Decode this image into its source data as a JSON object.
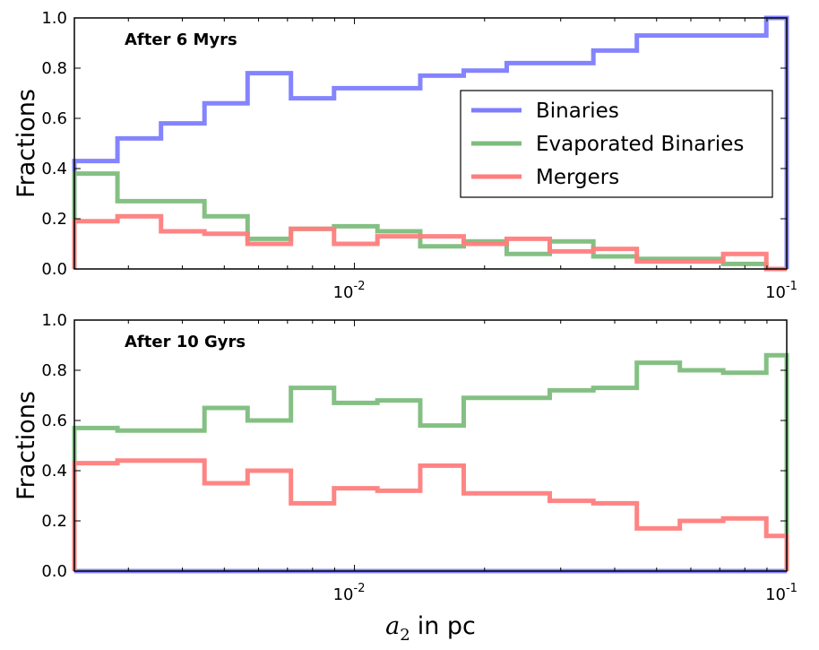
{
  "chart_data": [
    {
      "type": "step",
      "panel": "top",
      "annotation": "After 6 Myrs",
      "ylabel": "Fractions",
      "xlabel": "",
      "xscale": "log",
      "xlim": [
        0.00225,
        0.1
      ],
      "ylim": [
        0.0,
        1.0
      ],
      "yticks": [
        "0.0",
        "0.2",
        "0.4",
        "0.6",
        "0.8",
        "1.0"
      ],
      "xticks": [
        {
          "value": 0.01,
          "base": "10",
          "exp": "-2"
        },
        {
          "value": 0.1,
          "base": "10",
          "exp": "-1"
        }
      ],
      "bin_edges": [
        0.00225,
        0.00283,
        0.00357,
        0.0045,
        0.00566,
        0.00713,
        0.00897,
        0.0113,
        0.0142,
        0.0179,
        0.0225,
        0.0283,
        0.0357,
        0.045,
        0.0566,
        0.0713,
        0.0897,
        0.1
      ],
      "legend": {
        "position": "center-right",
        "entries": [
          "Binaries",
          "Evaporated Binaries",
          "Mergers"
        ]
      },
      "series": [
        {
          "name": "Binaries",
          "color": "#7d7dff",
          "values": [
            0.43,
            0.52,
            0.58,
            0.66,
            0.78,
            0.68,
            0.72,
            0.72,
            0.77,
            0.79,
            0.82,
            0.82,
            0.87,
            0.93,
            0.93,
            0.93,
            1.0
          ]
        },
        {
          "name": "Evaporated Binaries",
          "color": "#7dbd7d",
          "values": [
            0.38,
            0.27,
            0.27,
            0.21,
            0.12,
            0.16,
            0.17,
            0.15,
            0.09,
            0.11,
            0.06,
            0.11,
            0.05,
            0.04,
            0.04,
            0.02,
            0.0
          ]
        },
        {
          "name": "Mergers",
          "color": "#ff7d7d",
          "values": [
            0.19,
            0.21,
            0.15,
            0.14,
            0.1,
            0.16,
            0.1,
            0.13,
            0.13,
            0.1,
            0.12,
            0.07,
            0.08,
            0.03,
            0.03,
            0.06,
            0.0
          ]
        }
      ]
    },
    {
      "type": "step",
      "panel": "bottom",
      "annotation": "After 10 Gyrs",
      "ylabel": "Fractions",
      "xlabel": "in pc",
      "xlabel_math": "a",
      "xlabel_sub": "2",
      "xscale": "log",
      "xlim": [
        0.00225,
        0.1
      ],
      "ylim": [
        0.0,
        1.0
      ],
      "yticks": [
        "0.0",
        "0.2",
        "0.4",
        "0.6",
        "0.8",
        "1.0"
      ],
      "xticks": [
        {
          "value": 0.01,
          "base": "10",
          "exp": "-2"
        },
        {
          "value": 0.1,
          "base": "10",
          "exp": "-1"
        }
      ],
      "bin_edges": [
        0.00225,
        0.00283,
        0.00357,
        0.0045,
        0.00566,
        0.00713,
        0.00897,
        0.0113,
        0.0142,
        0.0179,
        0.0225,
        0.0283,
        0.0357,
        0.045,
        0.0566,
        0.0713,
        0.0897,
        0.1
      ],
      "series": [
        {
          "name": "Binaries",
          "color": "#7d7dff",
          "values": [
            0.0,
            0.0,
            0.0,
            0.0,
            0.0,
            0.0,
            0.0,
            0.0,
            0.0,
            0.0,
            0.0,
            0.0,
            0.0,
            0.0,
            0.0,
            0.0,
            0.0
          ]
        },
        {
          "name": "Evaporated Binaries",
          "color": "#7dbd7d",
          "values": [
            0.57,
            0.56,
            0.56,
            0.65,
            0.6,
            0.73,
            0.67,
            0.68,
            0.58,
            0.69,
            0.69,
            0.72,
            0.73,
            0.83,
            0.8,
            0.79,
            0.86
          ]
        },
        {
          "name": "Mergers",
          "color": "#ff7d7d",
          "values": [
            0.43,
            0.44,
            0.44,
            0.35,
            0.4,
            0.27,
            0.33,
            0.32,
            0.42,
            0.31,
            0.31,
            0.28,
            0.27,
            0.17,
            0.2,
            0.21,
            0.14
          ]
        }
      ]
    }
  ]
}
